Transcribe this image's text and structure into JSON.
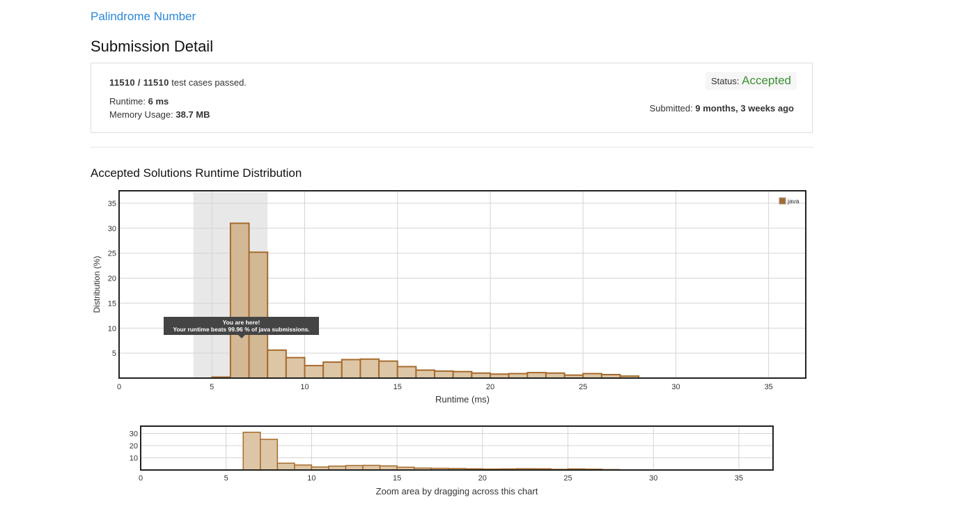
{
  "problem": {
    "title": "Palindrome Number"
  },
  "page": {
    "title": "Submission Detail"
  },
  "detail": {
    "passed": "11510",
    "total": "11510",
    "passed_suffix": "test cases passed.",
    "runtime_label": "Runtime:",
    "runtime_value": "6 ms",
    "memory_label": "Memory Usage:",
    "memory_value": "38.7 MB",
    "status_label": "Status:",
    "status_value": "Accepted",
    "submitted_label": "Submitted:",
    "submitted_value": "9 months, 3 weeks ago"
  },
  "distribution": {
    "heading": "Accepted Solutions Runtime Distribution"
  },
  "tooltip": {
    "line1": "You are here!",
    "line2": "Your runtime beats 99.96 % of java submissions."
  },
  "colors": {
    "link": "#2a88d8",
    "accepted": "#3d8f33",
    "bar_fill": "#ddc6a6",
    "bar_fill_highlight": "#d3b896",
    "bar_stroke": "#a66b2c",
    "highlight_band": "#e8e8e8"
  },
  "chart_data": [
    {
      "type": "bar",
      "series": [
        {
          "name": "java"
        }
      ],
      "x": [
        5.5,
        6.5,
        7.5,
        8.5,
        9.5,
        10.5,
        11.5,
        12.5,
        13.5,
        14.5,
        15.5,
        16.5,
        17.5,
        18.5,
        19.5,
        20.5,
        21.5,
        22.5,
        23.5,
        24.5,
        25.5,
        26.5,
        27.5
      ],
      "values": [
        0.2,
        31,
        25.2,
        5.6,
        4.1,
        2.5,
        3.2,
        3.7,
        3.8,
        3.4,
        2.3,
        1.6,
        1.4,
        1.3,
        1.0,
        0.8,
        0.9,
        1.1,
        1.0,
        0.6,
        0.9,
        0.7,
        0.4
      ],
      "xlabel": "Runtime (ms)",
      "ylabel": "Distribution (%)",
      "xlim": [
        0,
        37
      ],
      "ylim": [
        0,
        37.5
      ],
      "xticks": [
        0,
        5,
        10,
        15,
        20,
        25,
        30,
        35
      ],
      "yticks": [
        5,
        10,
        15,
        20,
        25,
        30,
        35
      ],
      "highlight_range": [
        4,
        8
      ],
      "highlight_bars": [
        6.5,
        7.5
      ],
      "legend": "top-right",
      "grid": true
    },
    {
      "type": "bar",
      "x": [
        5.5,
        6.5,
        7.5,
        8.5,
        9.5,
        10.5,
        11.5,
        12.5,
        13.5,
        14.5,
        15.5,
        16.5,
        17.5,
        18.5,
        19.5,
        20.5,
        21.5,
        22.5,
        23.5,
        24.5,
        25.5,
        26.5,
        27.5
      ],
      "values": [
        0.2,
        31,
        25.2,
        5.6,
        4.1,
        2.5,
        3.2,
        3.7,
        3.8,
        3.4,
        2.3,
        1.6,
        1.4,
        1.3,
        1.0,
        0.8,
        0.9,
        1.1,
        1.0,
        0.6,
        0.9,
        0.7,
        0.4
      ],
      "xlabel": "Zoom area by dragging across this chart",
      "xlim": [
        0,
        37
      ],
      "ylim": [
        0,
        36
      ],
      "xticks": [
        0,
        5,
        10,
        15,
        20,
        25,
        30,
        35
      ],
      "yticks": [
        10,
        20,
        30
      ],
      "grid": true
    }
  ]
}
